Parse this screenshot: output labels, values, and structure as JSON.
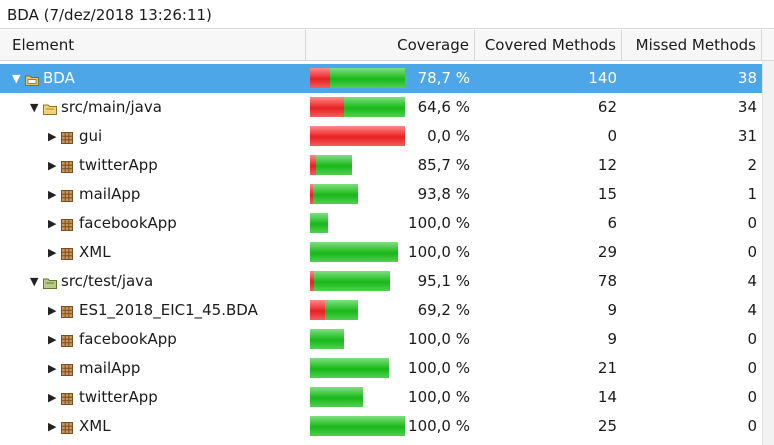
{
  "window": {
    "title": "BDA (7/dez/2018 13:26:11)"
  },
  "columns": {
    "element": "Element",
    "coverage": "Coverage",
    "covered": "Covered Methods",
    "missed": "Missed Methods"
  },
  "colors": {
    "selection": "#4da6e8",
    "missed_bar": "#e82020",
    "covered_bar": "#18b818"
  },
  "rows": [
    {
      "name": "BDA",
      "coverage": "78,7 %",
      "covered": "140",
      "missed": "38",
      "level": 0,
      "expanded": true,
      "icon": "project-folder-icon",
      "selected": true,
      "coverage_fraction": 0.787
    },
    {
      "name": "src/main/java",
      "coverage": "64,6 %",
      "covered": "62",
      "missed": "34",
      "level": 1,
      "expanded": true,
      "icon": "source-folder-icon",
      "selected": false,
      "coverage_fraction": 0.646
    },
    {
      "name": "gui",
      "coverage": "0,0 %",
      "covered": "0",
      "missed": "31",
      "level": 2,
      "expanded": false,
      "icon": "package-icon",
      "selected": false,
      "coverage_fraction": 0.0
    },
    {
      "name": "twitterApp",
      "coverage": "85,7 %",
      "covered": "12",
      "missed": "2",
      "level": 2,
      "expanded": false,
      "icon": "package-icon",
      "selected": false,
      "coverage_fraction": 0.857
    },
    {
      "name": "mailApp",
      "coverage": "93,8 %",
      "covered": "15",
      "missed": "1",
      "level": 2,
      "expanded": false,
      "icon": "package-icon",
      "selected": false,
      "coverage_fraction": 0.938
    },
    {
      "name": "facebookApp",
      "coverage": "100,0 %",
      "covered": "6",
      "missed": "0",
      "level": 2,
      "expanded": false,
      "icon": "package-icon",
      "selected": false,
      "coverage_fraction": 1.0
    },
    {
      "name": "XML",
      "coverage": "100,0 %",
      "covered": "29",
      "missed": "0",
      "level": 2,
      "expanded": false,
      "icon": "package-icon",
      "selected": false,
      "coverage_fraction": 1.0
    },
    {
      "name": "src/test/java",
      "coverage": "95,1 %",
      "covered": "78",
      "missed": "4",
      "level": 1,
      "expanded": true,
      "icon": "test-source-folder-icon",
      "selected": false,
      "coverage_fraction": 0.951
    },
    {
      "name": "ES1_2018_EIC1_45.BDA",
      "coverage": "69,2 %",
      "covered": "9",
      "missed": "4",
      "level": 2,
      "expanded": false,
      "icon": "package-icon",
      "selected": false,
      "coverage_fraction": 0.692
    },
    {
      "name": "facebookApp",
      "coverage": "100,0 %",
      "covered": "9",
      "missed": "0",
      "level": 2,
      "expanded": false,
      "icon": "package-icon",
      "selected": false,
      "coverage_fraction": 1.0
    },
    {
      "name": "mailApp",
      "coverage": "100,0 %",
      "covered": "21",
      "missed": "0",
      "level": 2,
      "expanded": false,
      "icon": "package-icon",
      "selected": false,
      "coverage_fraction": 1.0
    },
    {
      "name": "twitterApp",
      "coverage": "100,0 %",
      "covered": "14",
      "missed": "0",
      "level": 2,
      "expanded": false,
      "icon": "package-icon",
      "selected": false,
      "coverage_fraction": 1.0
    },
    {
      "name": "XML",
      "coverage": "100,0 %",
      "covered": "25",
      "missed": "0",
      "level": 2,
      "expanded": false,
      "icon": "package-icon",
      "selected": false,
      "coverage_fraction": 1.0
    }
  ]
}
